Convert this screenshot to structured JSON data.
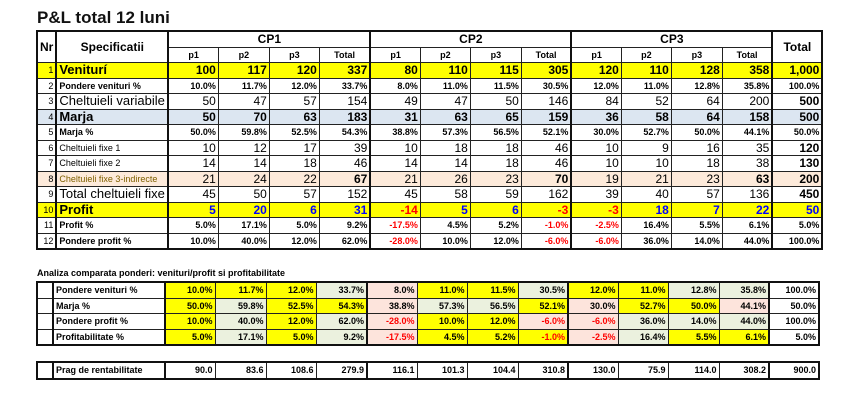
{
  "title": "P&L total 12 luni",
  "headers": {
    "nr": "Nr",
    "spec": "Specificatii",
    "groups": [
      "CP1",
      "CP2",
      "CP3"
    ],
    "sub": [
      "p1",
      "p2",
      "p3",
      "Total"
    ],
    "total": "Total"
  },
  "rows": [
    {
      "nr": "1",
      "label": "Veniturí",
      "style": "yellow big",
      "values": [
        "100",
        "117",
        "120",
        "337",
        "80",
        "110",
        "115",
        "305",
        "120",
        "110",
        "128",
        "358",
        "1,000"
      ]
    },
    {
      "nr": "2",
      "label": "Pondere venituri %",
      "style": "",
      "values": [
        "10.0%",
        "11.7%",
        "12.0%",
        "33.7%",
        "8.0%",
        "11.0%",
        "11.5%",
        "30.5%",
        "12.0%",
        "11.0%",
        "12.8%",
        "35.8%",
        "100.0%"
      ]
    },
    {
      "nr": "3",
      "label": "Cheltuieli variabile",
      "style": "big norm",
      "values": [
        "50",
        "47",
        "57",
        "154",
        "49",
        "47",
        "50",
        "146",
        "84",
        "52",
        "64",
        "200",
        "500"
      ]
    },
    {
      "nr": "4",
      "label": "Marja",
      "style": "blue big",
      "values": [
        "50",
        "70",
        "63",
        "183",
        "31",
        "63",
        "65",
        "159",
        "36",
        "58",
        "64",
        "158",
        "500"
      ]
    },
    {
      "nr": "5",
      "label": "Marja %",
      "style": "",
      "values": [
        "50.0%",
        "59.8%",
        "52.5%",
        "54.3%",
        "38.8%",
        "57.3%",
        "56.5%",
        "52.1%",
        "30.0%",
        "52.7%",
        "50.0%",
        "44.1%",
        "50.0%"
      ]
    },
    {
      "nr": "6",
      "label": "Cheltuieli fixe 1",
      "style": "norm",
      "values": [
        "10",
        "12",
        "17",
        "39",
        "10",
        "18",
        "18",
        "46",
        "10",
        "9",
        "16",
        "35",
        "120"
      ]
    },
    {
      "nr": "7",
      "label": "Cheltuieli fixe 2",
      "style": "norm",
      "values": [
        "14",
        "14",
        "18",
        "46",
        "14",
        "14",
        "18",
        "46",
        "10",
        "10",
        "18",
        "38",
        "130"
      ]
    },
    {
      "nr": "8",
      "label": "Cheltuieli fixe 3-indirecte",
      "style": "beige norm",
      "values": [
        "21",
        "24",
        "22",
        "67",
        "21",
        "26",
        "23",
        "70",
        "19",
        "21",
        "23",
        "63",
        "200"
      ]
    },
    {
      "nr": "9",
      "label": "Total cheltuieli fixe",
      "style": "big norm",
      "values": [
        "45",
        "50",
        "57",
        "152",
        "45",
        "58",
        "59",
        "162",
        "39",
        "40",
        "57",
        "136",
        "450"
      ]
    },
    {
      "nr": "10",
      "label": "Profit",
      "style": "yellow big profit",
      "values": [
        "5",
        "20",
        "6",
        "31",
        "-14",
        "5",
        "6",
        "-3",
        "-3",
        "18",
        "7",
        "22",
        "50"
      ]
    },
    {
      "nr": "11",
      "label": "Profit %",
      "style": "",
      "values": [
        "5.0%",
        "17.1%",
        "5.0%",
        "9.2%",
        "-17.5%",
        "4.5%",
        "5.2%",
        "-1.0%",
        "-2.5%",
        "16.4%",
        "5.5%",
        "6.1%",
        "5.0%"
      ]
    },
    {
      "nr": "12",
      "label": "Pondere profit %",
      "style": "",
      "values": [
        "10.0%",
        "40.0%",
        "12.0%",
        "62.0%",
        "-28.0%",
        "10.0%",
        "12.0%",
        "-6.0%",
        "-6.0%",
        "36.0%",
        "14.0%",
        "44.0%",
        "100.0%"
      ]
    }
  ],
  "comparison": {
    "title": "Analiza comparata ponderi: venituri/profit si profitabilitate",
    "colors": {
      "y": "#ffff00",
      "g": "#ebf1de",
      "p": "#fde4dc",
      "w": "#ffffff"
    },
    "rows": [
      {
        "label": "Pondere venituri %",
        "values": [
          "10.0%",
          "11.7%",
          "12.0%",
          "33.7%",
          "8.0%",
          "11.0%",
          "11.5%",
          "30.5%",
          "12.0%",
          "11.0%",
          "12.8%",
          "35.8%",
          "100.0%"
        ],
        "fills": [
          "y",
          "y",
          "y",
          "g",
          "p",
          "y",
          "y",
          "g",
          "y",
          "y",
          "g",
          "g",
          "w"
        ]
      },
      {
        "label": "Marja %",
        "values": [
          "50.0%",
          "59.8%",
          "52.5%",
          "54.3%",
          "38.8%",
          "57.3%",
          "56.5%",
          "52.1%",
          "30.0%",
          "52.7%",
          "50.0%",
          "44.1%",
          "50.0%"
        ],
        "fills": [
          "y",
          "g",
          "y",
          "y",
          "p",
          "g",
          "g",
          "y",
          "p",
          "y",
          "y",
          "p",
          "w"
        ]
      },
      {
        "label": "Pondere profit %",
        "values": [
          "10.0%",
          "40.0%",
          "12.0%",
          "62.0%",
          "-28.0%",
          "10.0%",
          "12.0%",
          "-6.0%",
          "-6.0%",
          "36.0%",
          "14.0%",
          "44.0%",
          "100.0%"
        ],
        "fills": [
          "y",
          "g",
          "y",
          "g",
          "p",
          "y",
          "y",
          "p",
          "p",
          "g",
          "g",
          "g",
          "w"
        ]
      },
      {
        "label": "Profitabilitate %",
        "values": [
          "5.0%",
          "17.1%",
          "5.0%",
          "9.2%",
          "-17.5%",
          "4.5%",
          "5.2%",
          "-1.0%",
          "-2.5%",
          "16.4%",
          "5.5%",
          "6.1%",
          "5.0%"
        ],
        "fills": [
          "y",
          "g",
          "y",
          "g",
          "p",
          "y",
          "y",
          "y",
          "p",
          "g",
          "y",
          "y",
          "w"
        ]
      }
    ]
  },
  "breakeven": {
    "label": "Prag de rentabilitate",
    "values": [
      "90.0",
      "83.6",
      "108.6",
      "279.9",
      "116.1",
      "101.3",
      "104.4",
      "310.8",
      "130.0",
      "75.9",
      "114.0",
      "308.2",
      "900.0"
    ]
  }
}
